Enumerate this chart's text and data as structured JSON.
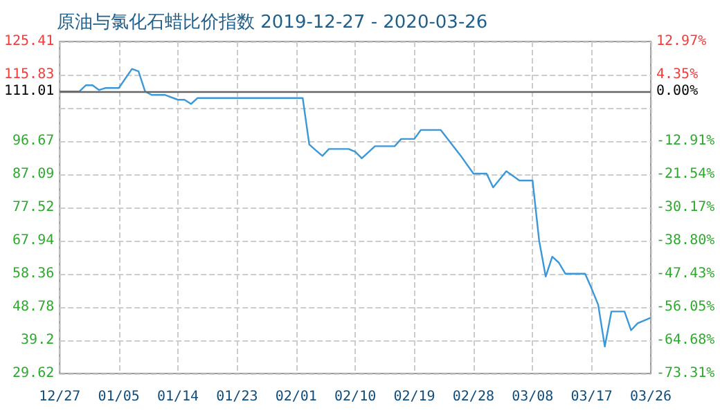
{
  "chart_data": {
    "type": "line",
    "title": "原油与氯化石蜡比价指数 2019-12-27 - 2020-03-26",
    "x": [
      "2019-12-27",
      "2019-12-30",
      "2019-12-31",
      "2020-01-01",
      "2020-01-02",
      "2020-01-03",
      "2020-01-05",
      "2020-01-07",
      "2020-01-08",
      "2020-01-09",
      "2020-01-10",
      "2020-01-12",
      "2020-01-14",
      "2020-01-15",
      "2020-01-16",
      "2020-01-17",
      "2020-02-02",
      "2020-02-03",
      "2020-02-04",
      "2020-02-05",
      "2020-02-06",
      "2020-02-09",
      "2020-02-10",
      "2020-02-11",
      "2020-02-13",
      "2020-02-16",
      "2020-02-17",
      "2020-02-19",
      "2020-02-20",
      "2020-02-23",
      "2020-02-26",
      "2020-02-28",
      "2020-03-01",
      "2020-03-02",
      "2020-03-04",
      "2020-03-06",
      "2020-03-08",
      "2020-03-09",
      "2020-03-10",
      "2020-03-11",
      "2020-03-12",
      "2020-03-13",
      "2020-03-16",
      "2020-03-17",
      "2020-03-18",
      "2020-03-19",
      "2020-03-20",
      "2020-03-22",
      "2020-03-23",
      "2020-03-24",
      "2020-03-26"
    ],
    "series": [
      {
        "color": "#3a97d8",
        "values": [
          111.0,
          111.0,
          112.8,
          112.8,
          111.4,
          112.0,
          112.0,
          117.5,
          116.8,
          111.0,
          110.0,
          110.0,
          108.6,
          108.6,
          107.4,
          109.1,
          109.1,
          95.7,
          94.0,
          92.4,
          94.4,
          94.4,
          93.6,
          91.7,
          95.2,
          95.2,
          97.3,
          97.3,
          99.9,
          99.9,
          92.6,
          87.3,
          87.3,
          83.3,
          88.0,
          85.3,
          85.3,
          68.0,
          57.6,
          63.3,
          61.6,
          58.4,
          58.4,
          54.1,
          49.4,
          37.4,
          47.5,
          47.5,
          42.1,
          44.1,
          45.7
        ]
      }
    ],
    "xlim": [
      "2019-12-27",
      "2020-03-26"
    ],
    "xticks": [
      {
        "value": "2019-12-27",
        "label": "12/27"
      },
      {
        "value": "2020-01-05",
        "label": "01/05"
      },
      {
        "value": "2020-01-14",
        "label": "01/14"
      },
      {
        "value": "2020-01-23",
        "label": "01/23"
      },
      {
        "value": "2020-02-01",
        "label": "02/01"
      },
      {
        "value": "2020-02-10",
        "label": "02/10"
      },
      {
        "value": "2020-02-19",
        "label": "02/19"
      },
      {
        "value": "2020-02-28",
        "label": "02/28"
      },
      {
        "value": "2020-03-08",
        "label": "03/08"
      },
      {
        "value": "2020-03-17",
        "label": "03/17"
      },
      {
        "value": "2020-03-26",
        "label": "03/26"
      }
    ],
    "ylim": [
      29.62,
      125.41
    ],
    "yticks": [
      29.62,
      39.2,
      48.78,
      58.36,
      67.94,
      77.52,
      87.09,
      96.67,
      {
        "value": 106.25,
        "label": null
      },
      111.01,
      115.83,
      125.41
    ],
    "y2lim": [
      -73.31,
      12.97
    ],
    "y2ticks": [
      {
        "value": -73.31,
        "label": "-73.31%"
      },
      {
        "value": -64.68,
        "label": "-64.68%"
      },
      {
        "value": -56.05,
        "label": "-56.05%"
      },
      {
        "value": -47.43,
        "label": "-47.43%"
      },
      {
        "value": -38.8,
        "label": "-38.80%"
      },
      {
        "value": -30.17,
        "label": "-30.17%"
      },
      {
        "value": -21.54,
        "label": "-21.54%"
      },
      {
        "value": -12.91,
        "label": "-12.91%"
      },
      {
        "value": 0,
        "label": "0.00%"
      },
      {
        "value": 4.35,
        "label": "4.35%"
      },
      {
        "value": 12.97,
        "label": "12.97%"
      }
    ],
    "ref_lines": [
      {
        "axis": "y",
        "value": 111.01,
        "color": "#666666"
      }
    ],
    "grid": true,
    "marker": "none",
    "line_style": "solid"
  }
}
